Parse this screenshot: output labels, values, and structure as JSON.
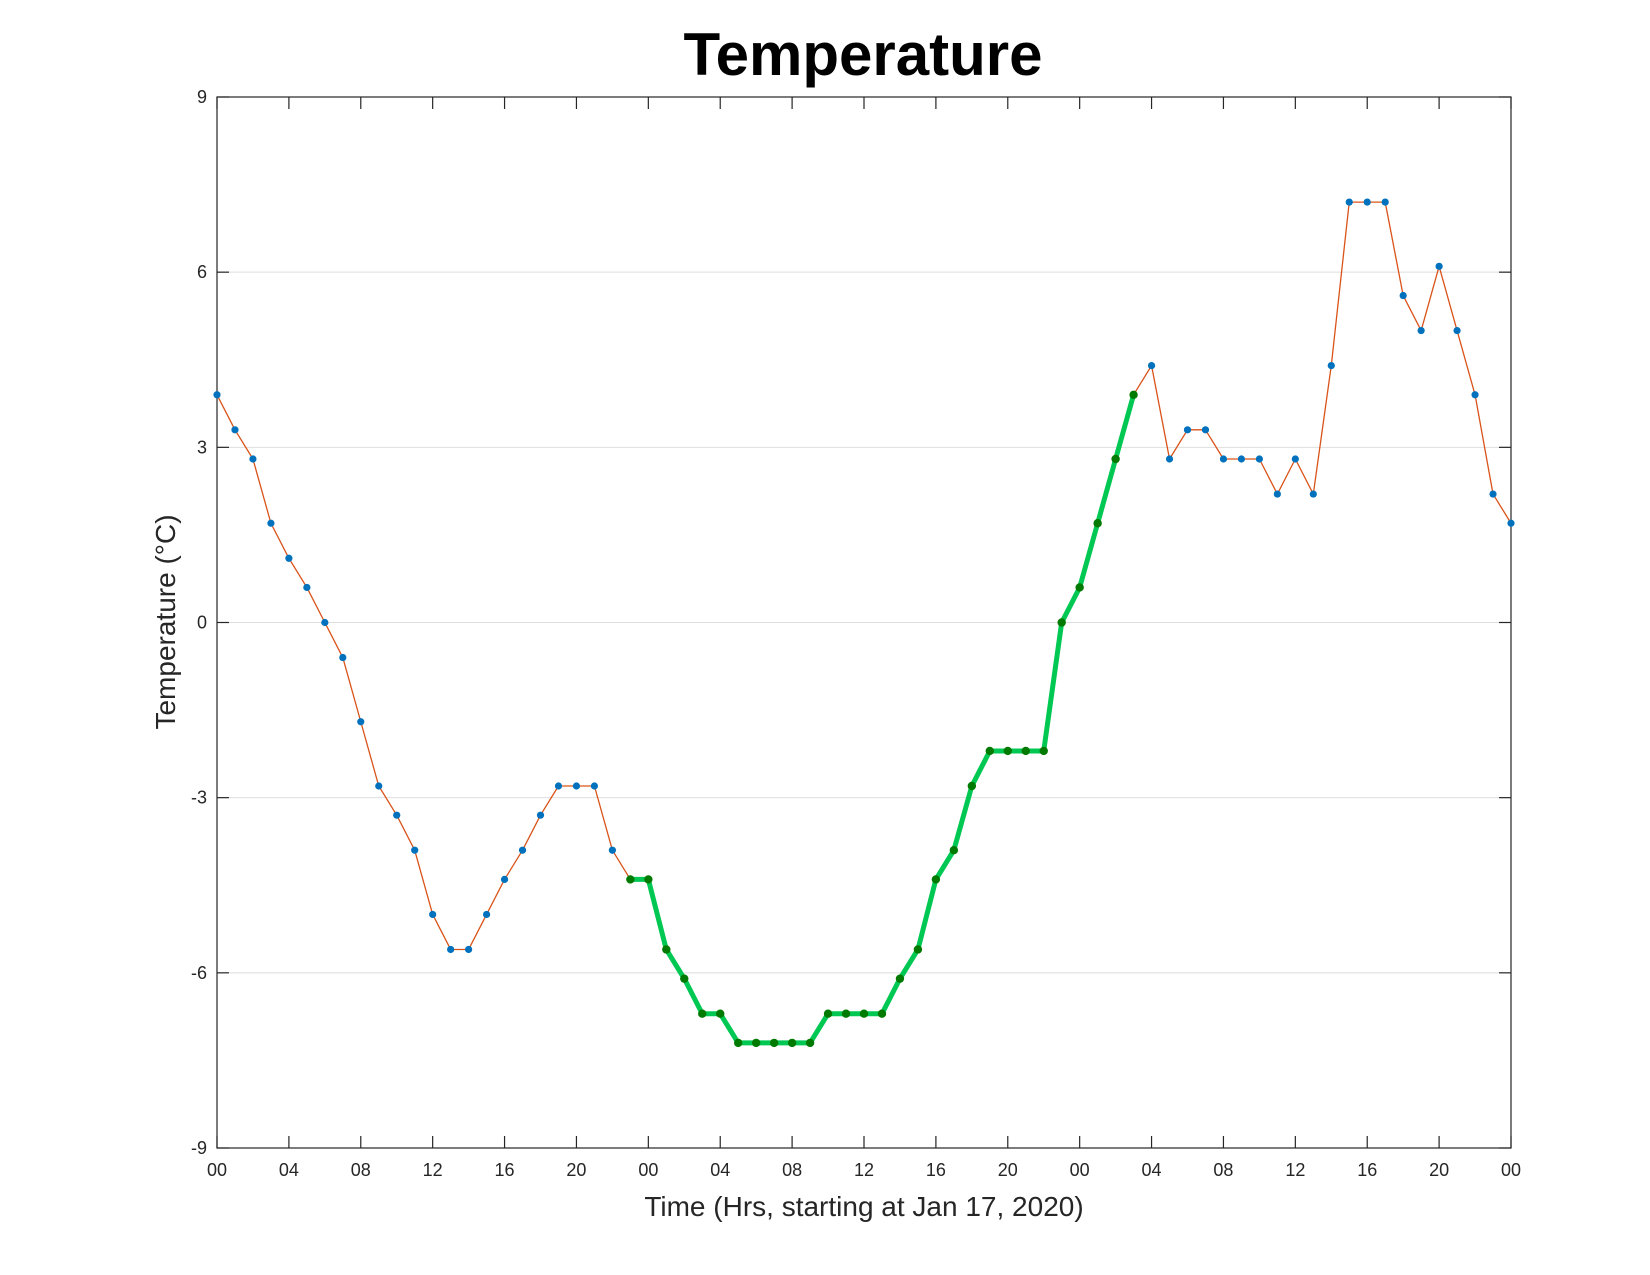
{
  "chart_data": {
    "type": "line",
    "title": "Temperature",
    "xlabel": "Time (Hrs, starting at Jan 17, 2020)",
    "ylabel": "Temperature (°C)",
    "ylim": [
      -9,
      9
    ],
    "xlim": [
      0,
      72
    ],
    "yticks": [
      -9,
      -6,
      -3,
      0,
      3,
      6,
      9
    ],
    "yticklabels": [
      "-9",
      "-6",
      "-3",
      "0",
      "3",
      "6",
      "9"
    ],
    "xticks": [
      0,
      4,
      8,
      12,
      16,
      20,
      24,
      28,
      32,
      36,
      40,
      44,
      48,
      52,
      56,
      60,
      64,
      68,
      72
    ],
    "xticklabels": [
      "00",
      "04",
      "08",
      "12",
      "16",
      "20",
      "00",
      "04",
      "08",
      "12",
      "16",
      "20",
      "00",
      "04",
      "08",
      "12",
      "16",
      "20",
      "00"
    ],
    "grid": "horizontal",
    "series": [
      {
        "x": [
          0,
          1,
          2,
          3,
          4,
          5,
          6,
          7,
          8,
          9,
          10,
          11,
          12,
          13,
          14,
          15,
          16,
          17,
          18,
          19,
          20,
          21,
          22,
          23,
          24,
          25,
          26,
          27,
          28,
          29,
          30,
          31,
          32,
          33,
          34,
          35,
          36,
          37,
          38,
          39,
          40,
          41,
          42,
          43,
          44,
          45,
          46,
          47,
          48,
          49,
          50,
          51,
          52,
          53,
          54,
          55,
          56,
          57,
          58,
          59,
          60,
          61,
          62,
          63,
          64,
          65,
          66,
          67,
          68,
          69,
          70,
          71,
          72
        ],
        "values": [
          3.9,
          3.3,
          2.8,
          1.7,
          1.1,
          0.6,
          0,
          -0.6,
          -1.7,
          -2.8,
          -3.3,
          -3.9,
          -5.0,
          -5.6,
          -5.6,
          -5.0,
          -4.4,
          -3.9,
          -3.3,
          -2.8,
          -2.8,
          -2.8,
          -3.9,
          -4.4,
          -4.4,
          -5.6,
          -6.1,
          -6.7,
          -6.7,
          -7.2,
          -7.2,
          -7.2,
          -7.2,
          -7.2,
          -6.7,
          -6.7,
          -6.7,
          -6.7,
          -6.1,
          -5.6,
          -4.4,
          -3.9,
          -2.8,
          -2.2,
          -2.2,
          -2.2,
          -2.2,
          0,
          0.6,
          1.7,
          2.8,
          3.9,
          4.4,
          2.8,
          3.3,
          3.3,
          2.8,
          2.8,
          2.8,
          2.2,
          2.8,
          2.2,
          4.4,
          7.2,
          7.2,
          7.2,
          5.6,
          5.0,
          6.1,
          5.0,
          3.9,
          2.2,
          1.7
        ],
        "line_color": "#d95319",
        "marker_color": "#0072bd"
      },
      {
        "x": [
          23,
          24,
          25,
          26,
          27,
          28,
          29,
          30,
          31,
          32,
          33,
          34,
          35,
          36,
          37,
          38,
          39,
          40,
          41,
          42,
          43,
          44,
          45,
          46,
          47,
          48,
          49,
          50,
          51
        ],
        "values": [
          -4.4,
          -4.4,
          -5.6,
          -6.1,
          -6.7,
          -6.7,
          -7.2,
          -7.2,
          -7.2,
          -7.2,
          -7.2,
          -6.7,
          -6.7,
          -6.7,
          -6.7,
          -6.1,
          -5.6,
          -4.4,
          -3.9,
          -2.8,
          -2.2,
          -2.2,
          -2.2,
          -2.2,
          0,
          0.6,
          1.7,
          2.8,
          3.9
        ],
        "line_color": "#00c853",
        "marker_color": "#007a00"
      }
    ]
  }
}
